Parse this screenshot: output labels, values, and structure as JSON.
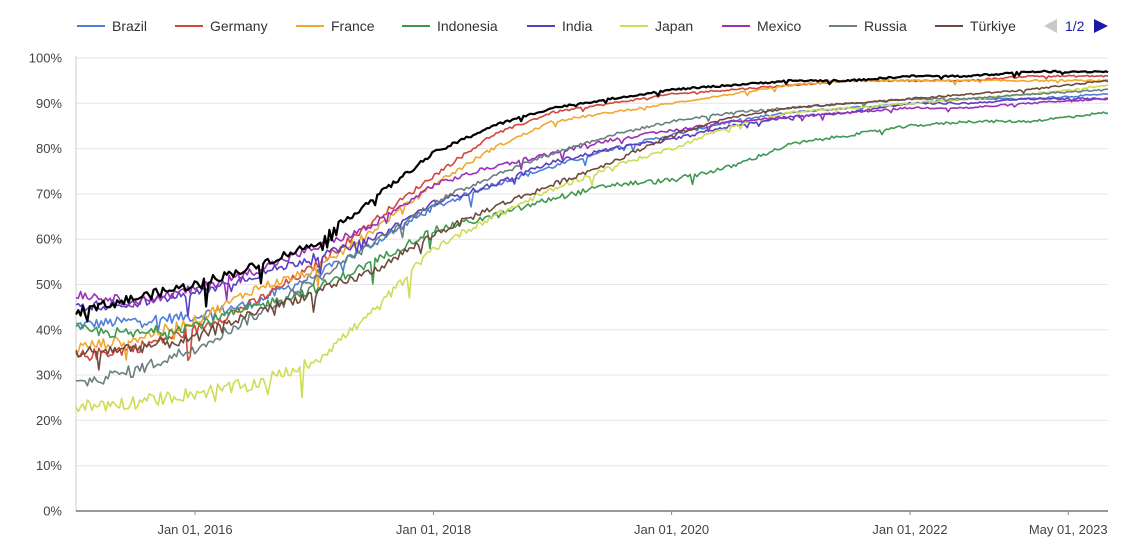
{
  "chart_data": {
    "type": "line",
    "title": "",
    "xlabel": "",
    "ylabel": "",
    "ylim": [
      0,
      100
    ],
    "xlim": [
      "2015-01-01",
      "2023-08-31"
    ],
    "y_ticks": [
      "0%",
      "10%",
      "20%",
      "30%",
      "40%",
      "50%",
      "60%",
      "70%",
      "80%",
      "90%",
      "100%"
    ],
    "x_ticks": [
      {
        "date": "2016-01-01",
        "label": "Jan 01, 2016"
      },
      {
        "date": "2018-01-01",
        "label": "Jan 01, 2018"
      },
      {
        "date": "2020-01-01",
        "label": "Jan 01, 2020"
      },
      {
        "date": "2022-01-01",
        "label": "Jan 01, 2022"
      },
      {
        "date": "2023-05-01",
        "label": "May 01, 2023"
      }
    ],
    "grid": {
      "horizontal": true,
      "vertical": false
    },
    "legend": {
      "position": "top",
      "page": "1/2"
    },
    "series": [
      {
        "name": "Brazil",
        "color": "#4e7fd8",
        "points": [
          [
            "2015-01-01",
            41
          ],
          [
            "2015-07-01",
            42
          ],
          [
            "2016-01-01",
            43
          ],
          [
            "2016-07-01",
            46
          ],
          [
            "2017-01-01",
            52
          ],
          [
            "2017-07-01",
            59
          ],
          [
            "2018-01-01",
            67
          ],
          [
            "2018-07-01",
            72
          ],
          [
            "2019-01-01",
            76
          ],
          [
            "2019-07-01",
            80
          ],
          [
            "2020-01-01",
            83
          ],
          [
            "2020-07-01",
            86
          ],
          [
            "2021-01-01",
            88
          ],
          [
            "2021-07-01",
            89
          ],
          [
            "2022-01-01",
            90
          ],
          [
            "2022-07-01",
            91
          ],
          [
            "2023-01-01",
            91
          ],
          [
            "2023-08-31",
            92
          ]
        ]
      },
      {
        "name": "Germany",
        "color": "#d0483b",
        "points": [
          [
            "2015-01-01",
            34
          ],
          [
            "2015-07-01",
            36
          ],
          [
            "2016-01-01",
            40
          ],
          [
            "2016-07-01",
            46
          ],
          [
            "2017-01-01",
            54
          ],
          [
            "2017-07-01",
            64
          ],
          [
            "2018-01-01",
            74
          ],
          [
            "2018-07-01",
            83
          ],
          [
            "2019-01-01",
            88
          ],
          [
            "2019-07-01",
            90
          ],
          [
            "2020-01-01",
            92
          ],
          [
            "2020-07-01",
            93
          ],
          [
            "2021-01-01",
            94
          ],
          [
            "2021-07-01",
            95
          ],
          [
            "2022-01-01",
            95
          ],
          [
            "2022-07-01",
            95
          ],
          [
            "2023-01-01",
            96
          ],
          [
            "2023-08-31",
            96
          ]
        ]
      },
      {
        "name": "France",
        "color": "#f0a830",
        "points": [
          [
            "2015-01-01",
            36
          ],
          [
            "2015-07-01",
            38
          ],
          [
            "2016-01-01",
            42
          ],
          [
            "2016-07-01",
            49
          ],
          [
            "2017-01-01",
            53
          ],
          [
            "2017-07-01",
            62
          ],
          [
            "2018-01-01",
            72
          ],
          [
            "2018-07-01",
            80
          ],
          [
            "2019-01-01",
            86
          ],
          [
            "2019-07-01",
            88
          ],
          [
            "2020-01-01",
            90
          ],
          [
            "2020-07-01",
            92
          ],
          [
            "2021-01-01",
            94
          ],
          [
            "2021-07-01",
            95
          ],
          [
            "2022-01-01",
            95
          ],
          [
            "2022-07-01",
            95
          ],
          [
            "2023-01-01",
            95
          ],
          [
            "2023-08-31",
            95
          ]
        ]
      },
      {
        "name": "Indonesia",
        "color": "#3f9950",
        "points": [
          [
            "2015-01-01",
            40
          ],
          [
            "2015-07-01",
            39
          ],
          [
            "2016-01-01",
            41
          ],
          [
            "2016-07-01",
            45
          ],
          [
            "2017-01-01",
            49
          ],
          [
            "2017-07-01",
            55
          ],
          [
            "2018-01-01",
            62
          ],
          [
            "2018-07-01",
            65
          ],
          [
            "2019-01-01",
            69
          ],
          [
            "2019-07-01",
            72
          ],
          [
            "2020-01-01",
            73
          ],
          [
            "2020-07-01",
            76
          ],
          [
            "2021-01-01",
            81
          ],
          [
            "2021-07-01",
            83
          ],
          [
            "2022-01-01",
            85
          ],
          [
            "2022-07-01",
            86
          ],
          [
            "2023-01-01",
            86
          ],
          [
            "2023-08-31",
            88
          ]
        ]
      },
      {
        "name": "India",
        "color": "#5a3fc0",
        "points": [
          [
            "2015-01-01",
            45
          ],
          [
            "2015-07-01",
            46
          ],
          [
            "2016-01-01",
            48
          ],
          [
            "2016-07-01",
            52
          ],
          [
            "2017-01-01",
            56
          ],
          [
            "2017-07-01",
            60
          ],
          [
            "2018-01-01",
            68
          ],
          [
            "2018-07-01",
            72
          ],
          [
            "2019-01-01",
            77
          ],
          [
            "2019-07-01",
            80
          ],
          [
            "2020-01-01",
            82
          ],
          [
            "2020-07-01",
            85
          ],
          [
            "2021-01-01",
            87
          ],
          [
            "2021-07-01",
            88
          ],
          [
            "2022-01-01",
            90
          ],
          [
            "2022-07-01",
            90
          ],
          [
            "2023-01-01",
            91
          ],
          [
            "2023-08-31",
            91
          ]
        ]
      },
      {
        "name": "Japan",
        "color": "#cfdc55",
        "points": [
          [
            "2015-01-01",
            23
          ],
          [
            "2015-07-01",
            24
          ],
          [
            "2016-01-01",
            26
          ],
          [
            "2016-07-01",
            28
          ],
          [
            "2017-01-01",
            33
          ],
          [
            "2017-07-01",
            44
          ],
          [
            "2018-01-01",
            58
          ],
          [
            "2018-07-01",
            65
          ],
          [
            "2019-01-01",
            71
          ],
          [
            "2019-07-01",
            76
          ],
          [
            "2020-01-01",
            80
          ],
          [
            "2020-07-01",
            85
          ],
          [
            "2021-01-01",
            88
          ],
          [
            "2021-07-01",
            89
          ],
          [
            "2022-01-01",
            90
          ],
          [
            "2022-07-01",
            91
          ],
          [
            "2023-01-01",
            92
          ],
          [
            "2023-08-31",
            94
          ]
        ]
      },
      {
        "name": "Mexico",
        "color": "#9932b8",
        "points": [
          [
            "2015-01-01",
            48
          ],
          [
            "2015-07-01",
            46
          ],
          [
            "2016-01-01",
            49
          ],
          [
            "2016-07-01",
            53
          ],
          [
            "2017-01-01",
            58
          ],
          [
            "2017-07-01",
            63
          ],
          [
            "2018-01-01",
            72
          ],
          [
            "2018-07-01",
            76
          ],
          [
            "2019-01-01",
            79
          ],
          [
            "2019-07-01",
            82
          ],
          [
            "2020-01-01",
            84
          ],
          [
            "2020-07-01",
            86
          ],
          [
            "2021-01-01",
            87
          ],
          [
            "2021-07-01",
            88
          ],
          [
            "2022-01-01",
            89
          ],
          [
            "2022-07-01",
            89
          ],
          [
            "2023-01-01",
            90
          ],
          [
            "2023-08-31",
            91
          ]
        ]
      },
      {
        "name": "Russia",
        "color": "#6b7f7f",
        "points": [
          [
            "2015-01-01",
            28
          ],
          [
            "2015-07-01",
            31
          ],
          [
            "2016-01-01",
            36
          ],
          [
            "2016-07-01",
            43
          ],
          [
            "2017-01-01",
            51
          ],
          [
            "2017-07-01",
            59
          ],
          [
            "2018-01-01",
            68
          ],
          [
            "2018-07-01",
            74
          ],
          [
            "2019-01-01",
            79
          ],
          [
            "2019-07-01",
            83
          ],
          [
            "2020-01-01",
            86
          ],
          [
            "2020-07-01",
            88
          ],
          [
            "2021-01-01",
            89
          ],
          [
            "2021-07-01",
            90
          ],
          [
            "2022-01-01",
            91
          ],
          [
            "2022-07-01",
            91
          ],
          [
            "2023-01-01",
            92
          ],
          [
            "2023-08-31",
            93
          ]
        ]
      },
      {
        "name": "Türkiye",
        "color": "#6e4a3c",
        "points": [
          [
            "2015-01-01",
            35
          ],
          [
            "2015-07-01",
            36
          ],
          [
            "2016-01-01",
            38
          ],
          [
            "2016-07-01",
            44
          ],
          [
            "2017-01-01",
            48
          ],
          [
            "2017-07-01",
            53
          ],
          [
            "2018-01-01",
            61
          ],
          [
            "2018-07-01",
            67
          ],
          [
            "2019-01-01",
            72
          ],
          [
            "2019-07-01",
            77
          ],
          [
            "2020-01-01",
            83
          ],
          [
            "2020-07-01",
            87
          ],
          [
            "2021-01-01",
            89
          ],
          [
            "2021-07-01",
            90
          ],
          [
            "2022-01-01",
            91
          ],
          [
            "2022-07-01",
            92
          ],
          [
            "2023-01-01",
            93
          ],
          [
            "2023-08-31",
            95
          ]
        ]
      },
      {
        "name": "",
        "color": "#000000",
        "points": [
          [
            "2015-01-01",
            44
          ],
          [
            "2015-07-01",
            47
          ],
          [
            "2016-01-01",
            50
          ],
          [
            "2016-07-01",
            54
          ],
          [
            "2017-01-01",
            59
          ],
          [
            "2017-07-01",
            69
          ],
          [
            "2018-01-01",
            79
          ],
          [
            "2018-07-01",
            85
          ],
          [
            "2019-01-01",
            89
          ],
          [
            "2019-07-01",
            91
          ],
          [
            "2020-01-01",
            93
          ],
          [
            "2020-07-01",
            94
          ],
          [
            "2021-01-01",
            95
          ],
          [
            "2021-07-01",
            95
          ],
          [
            "2022-01-01",
            96
          ],
          [
            "2022-07-01",
            96
          ],
          [
            "2023-01-01",
            97
          ],
          [
            "2023-08-31",
            97
          ]
        ]
      }
    ]
  }
}
